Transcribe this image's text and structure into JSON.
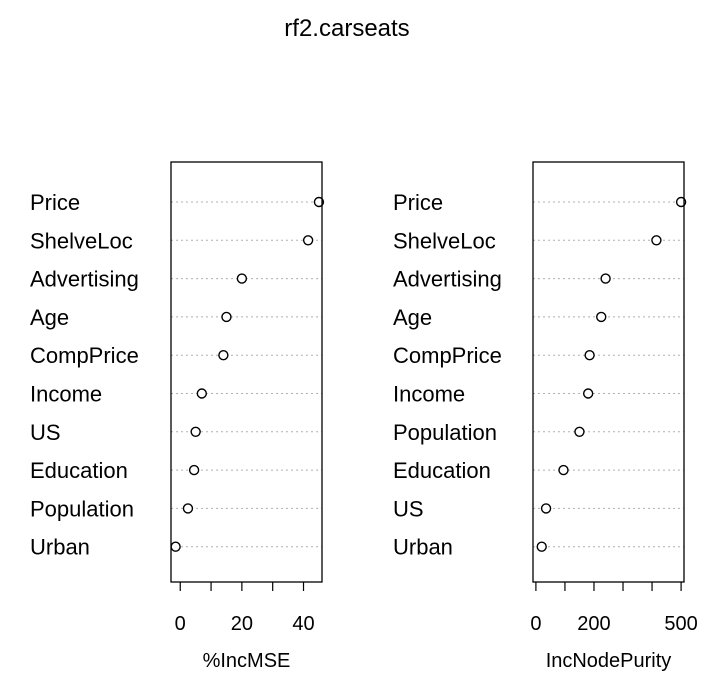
{
  "title": "rf2.carseats",
  "chart_data": [
    {
      "type": "scatter",
      "xlabel": "%IncMSE",
      "categories": [
        "Price",
        "ShelveLoc",
        "Advertising",
        "Age",
        "CompPrice",
        "Income",
        "US",
        "Education",
        "Population",
        "Urban"
      ],
      "values": [
        45,
        41.5,
        20,
        15,
        14,
        7,
        5,
        4.5,
        2.5,
        -1.5
      ],
      "xlim": [
        -3,
        46
      ],
      "xticks": [
        0,
        10,
        20,
        30,
        40
      ],
      "xtick_labels": [
        "0",
        "",
        "20",
        "",
        "40"
      ],
      "grid": "dotted horizontal"
    },
    {
      "type": "scatter",
      "xlabel": "IncNodePurity",
      "categories": [
        "Price",
        "ShelveLoc",
        "Advertising",
        "Age",
        "CompPrice",
        "Income",
        "Population",
        "Education",
        "US",
        "Urban"
      ],
      "values": [
        500,
        415,
        240,
        225,
        185,
        180,
        150,
        95,
        35,
        20
      ],
      "xlim": [
        -10,
        510
      ],
      "xticks": [
        0,
        100,
        200,
        300,
        400,
        500
      ],
      "xtick_labels": [
        "0",
        "",
        "200",
        "",
        "",
        "500"
      ],
      "grid": "dotted horizontal"
    }
  ]
}
